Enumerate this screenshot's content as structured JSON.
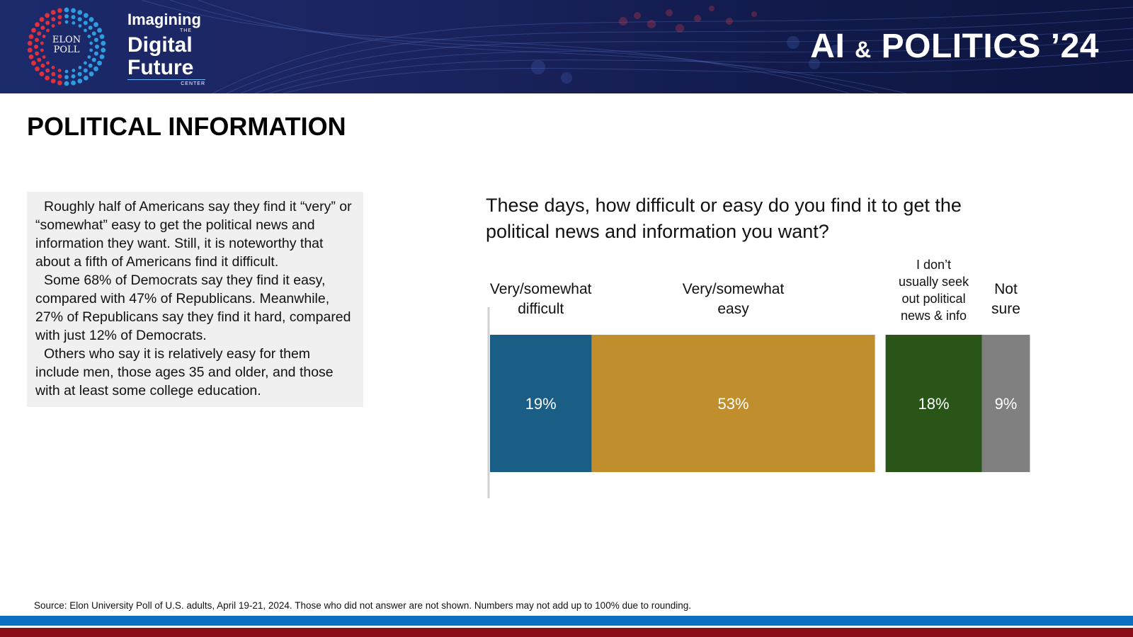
{
  "colors": {
    "banner_bg": "#1b2a6b",
    "difficult": "#1a5e85",
    "easy": "#c18e2d",
    "not_seek": "#2a5519",
    "not_sure": "#808080",
    "stripe_blue": "#0d6fc0",
    "stripe_red": "#8c0f18"
  },
  "header": {
    "logo_line1": "ELON",
    "logo_line2": "POLL",
    "brand_line1": "Imagining",
    "brand_the": "THE",
    "brand_line2": "Digital",
    "brand_line3": "Future",
    "brand_center": "CENTER",
    "title_ai": "AI",
    "title_amp": "&",
    "title_rest": "POLITICS ’24"
  },
  "page_title": "POLITICAL INFORMATION",
  "summary": {
    "paragraphs": [
      "Roughly half of Americans say they find it “very” or “somewhat” easy to get the political news and information they want. Still, it is noteworthy that about a fifth of Americans find it difficult.",
      "Some 68% of Democrats say they find it easy, compared with 47% of Republicans. Meanwhile, 27% of Republicans say they find it hard, compared with just 12% of Democrats.",
      "Others who say it is relatively easy for them include men, those ages 35 and older, and those with at least some college education."
    ]
  },
  "chart_data": {
    "type": "bar",
    "orientation": "horizontal-stacked",
    "title": "These days, how difficult or easy do you find it to get the political news and information you want?",
    "unit": "%",
    "series": [
      {
        "name": "Very/somewhat difficult",
        "value": 19,
        "label": "19%",
        "color": "#1a5e85",
        "group": "main"
      },
      {
        "name": "Very/somewhat easy",
        "value": 53,
        "label": "53%",
        "color": "#c18e2d",
        "group": "main"
      },
      {
        "name": "I don’t usually seek out political news & info",
        "value": 18,
        "label": "18%",
        "color": "#2a5519",
        "group": "side"
      },
      {
        "name": "Not sure",
        "value": 9,
        "label": "9%",
        "color": "#808080",
        "group": "side"
      }
    ],
    "header_labels": [
      [
        "Very/somewhat",
        "difficult"
      ],
      [
        "Very/somewhat",
        "easy"
      ],
      [
        "I don’t",
        "usually seek",
        "out political",
        "news & info"
      ],
      [
        "Not",
        "sure"
      ]
    ]
  },
  "source": "Source: Elon University Poll of U.S. adults, April 19-21, 2024. Those who did not answer are not shown. Numbers may not add up to 100% due to rounding."
}
